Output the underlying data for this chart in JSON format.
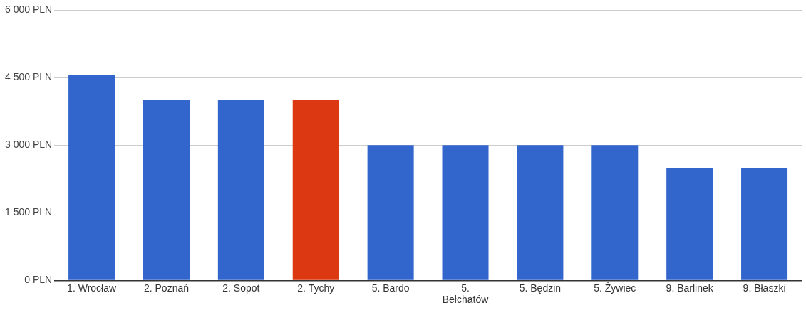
{
  "chart_data": {
    "type": "bar",
    "categories": [
      "1. Wrocław",
      "2. Poznań",
      "2. Sopot",
      "2. Tychy",
      "5. Bardo",
      "5. Bełchatów",
      "5. Będzin",
      "5. Żywiec",
      "9. Barlinek",
      "9. Błaszki"
    ],
    "values": [
      4550,
      4000,
      4000,
      4000,
      3000,
      3000,
      3000,
      3000,
      2500,
      2500
    ],
    "colors": [
      "#3366cc",
      "#3366cc",
      "#3366cc",
      "#dc3912",
      "#3366cc",
      "#3366cc",
      "#3366cc",
      "#3366cc",
      "#3366cc",
      "#3366cc"
    ],
    "ylim": [
      0,
      6000
    ],
    "yticks": [
      {
        "value": 0,
        "label": "0 PLN"
      },
      {
        "value": 1500,
        "label": "1 500 PLN"
      },
      {
        "value": 3000,
        "label": "3 000 PLN"
      },
      {
        "value": 4500,
        "label": "4 500 PLN"
      },
      {
        "value": 6000,
        "label": "6 000 PLN"
      }
    ],
    "grid": "y",
    "legend": false
  }
}
